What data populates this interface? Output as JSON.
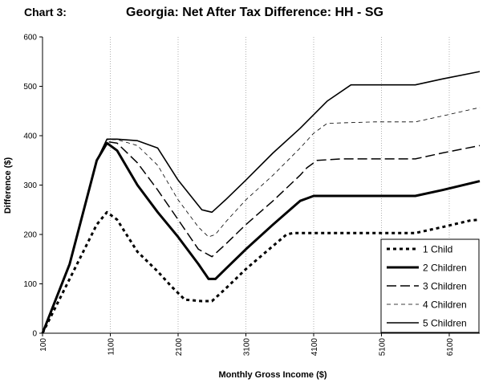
{
  "chart_label": "Chart 3:",
  "chart_data": {
    "type": "line",
    "title": "Georgia: Net After Tax Difference: HH - SG",
    "xlabel": "Monthly Gross Income ($)",
    "ylabel": "Difference ($)",
    "xlim": [
      100,
      6550
    ],
    "ylim": [
      0,
      600
    ],
    "x_ticks": [
      "100",
      "1100",
      "2100",
      "3100",
      "4100",
      "5100",
      "6100"
    ],
    "y_ticks": [
      "0",
      "100",
      "200",
      "300",
      "400",
      "500",
      "600"
    ],
    "grid": "vertical-dotted",
    "legend_position": "bottom-right",
    "series": [
      {
        "name": "1 Child",
        "style": "dotted-heavy",
        "x": [
          100,
          500,
          900,
          1050,
          1200,
          1500,
          1800,
          2000,
          2200,
          2450,
          2600,
          2800,
          3100,
          3400,
          3700,
          3800,
          4100,
          5000,
          5600,
          6000,
          6400,
          6550
        ],
        "y": [
          0,
          110,
          220,
          245,
          230,
          165,
          125,
          95,
          68,
          65,
          65,
          90,
          130,
          165,
          200,
          203,
          203,
          203,
          203,
          215,
          228,
          230
        ]
      },
      {
        "name": "2 Children",
        "style": "solid-heavy",
        "x": [
          100,
          500,
          900,
          1050,
          1200,
          1500,
          1800,
          2100,
          2400,
          2550,
          2650,
          2800,
          3100,
          3500,
          3900,
          4100,
          4500,
          5000,
          5600,
          6000,
          6550
        ],
        "y": [
          0,
          140,
          350,
          385,
          370,
          300,
          245,
          195,
          140,
          110,
          110,
          130,
          170,
          220,
          268,
          278,
          278,
          278,
          278,
          290,
          308
        ]
      },
      {
        "name": "3 Children",
        "style": "dashed",
        "x": [
          100,
          500,
          900,
          1050,
          1200,
          1500,
          1800,
          2100,
          2400,
          2600,
          2800,
          3100,
          3500,
          3900,
          4000,
          4150,
          4500,
          5000,
          5600,
          6000,
          6550
        ],
        "y": [
          0,
          140,
          350,
          388,
          385,
          345,
          290,
          230,
          170,
          155,
          180,
          220,
          268,
          320,
          335,
          350,
          353,
          353,
          353,
          365,
          380
        ]
      },
      {
        "name": "4 Children",
        "style": "dash-thin",
        "x": [
          100,
          500,
          900,
          1050,
          1200,
          1500,
          1800,
          2100,
          2400,
          2550,
          2650,
          2800,
          3100,
          3500,
          3900,
          4100,
          4300,
          5000,
          5600,
          6000,
          6550
        ],
        "y": [
          0,
          140,
          350,
          392,
          392,
          380,
          340,
          270,
          215,
          195,
          200,
          225,
          270,
          320,
          375,
          405,
          425,
          428,
          428,
          440,
          457
        ]
      },
      {
        "name": "5 Children",
        "style": "solid",
        "x": [
          100,
          500,
          900,
          1050,
          1200,
          1500,
          1800,
          2100,
          2450,
          2600,
          2800,
          3100,
          3500,
          3900,
          4300,
          4650,
          5000,
          5600,
          6000,
          6550
        ],
        "y": [
          0,
          140,
          350,
          393,
          393,
          390,
          375,
          310,
          250,
          245,
          270,
          310,
          365,
          415,
          470,
          503,
          503,
          503,
          515,
          530
        ]
      }
    ]
  }
}
